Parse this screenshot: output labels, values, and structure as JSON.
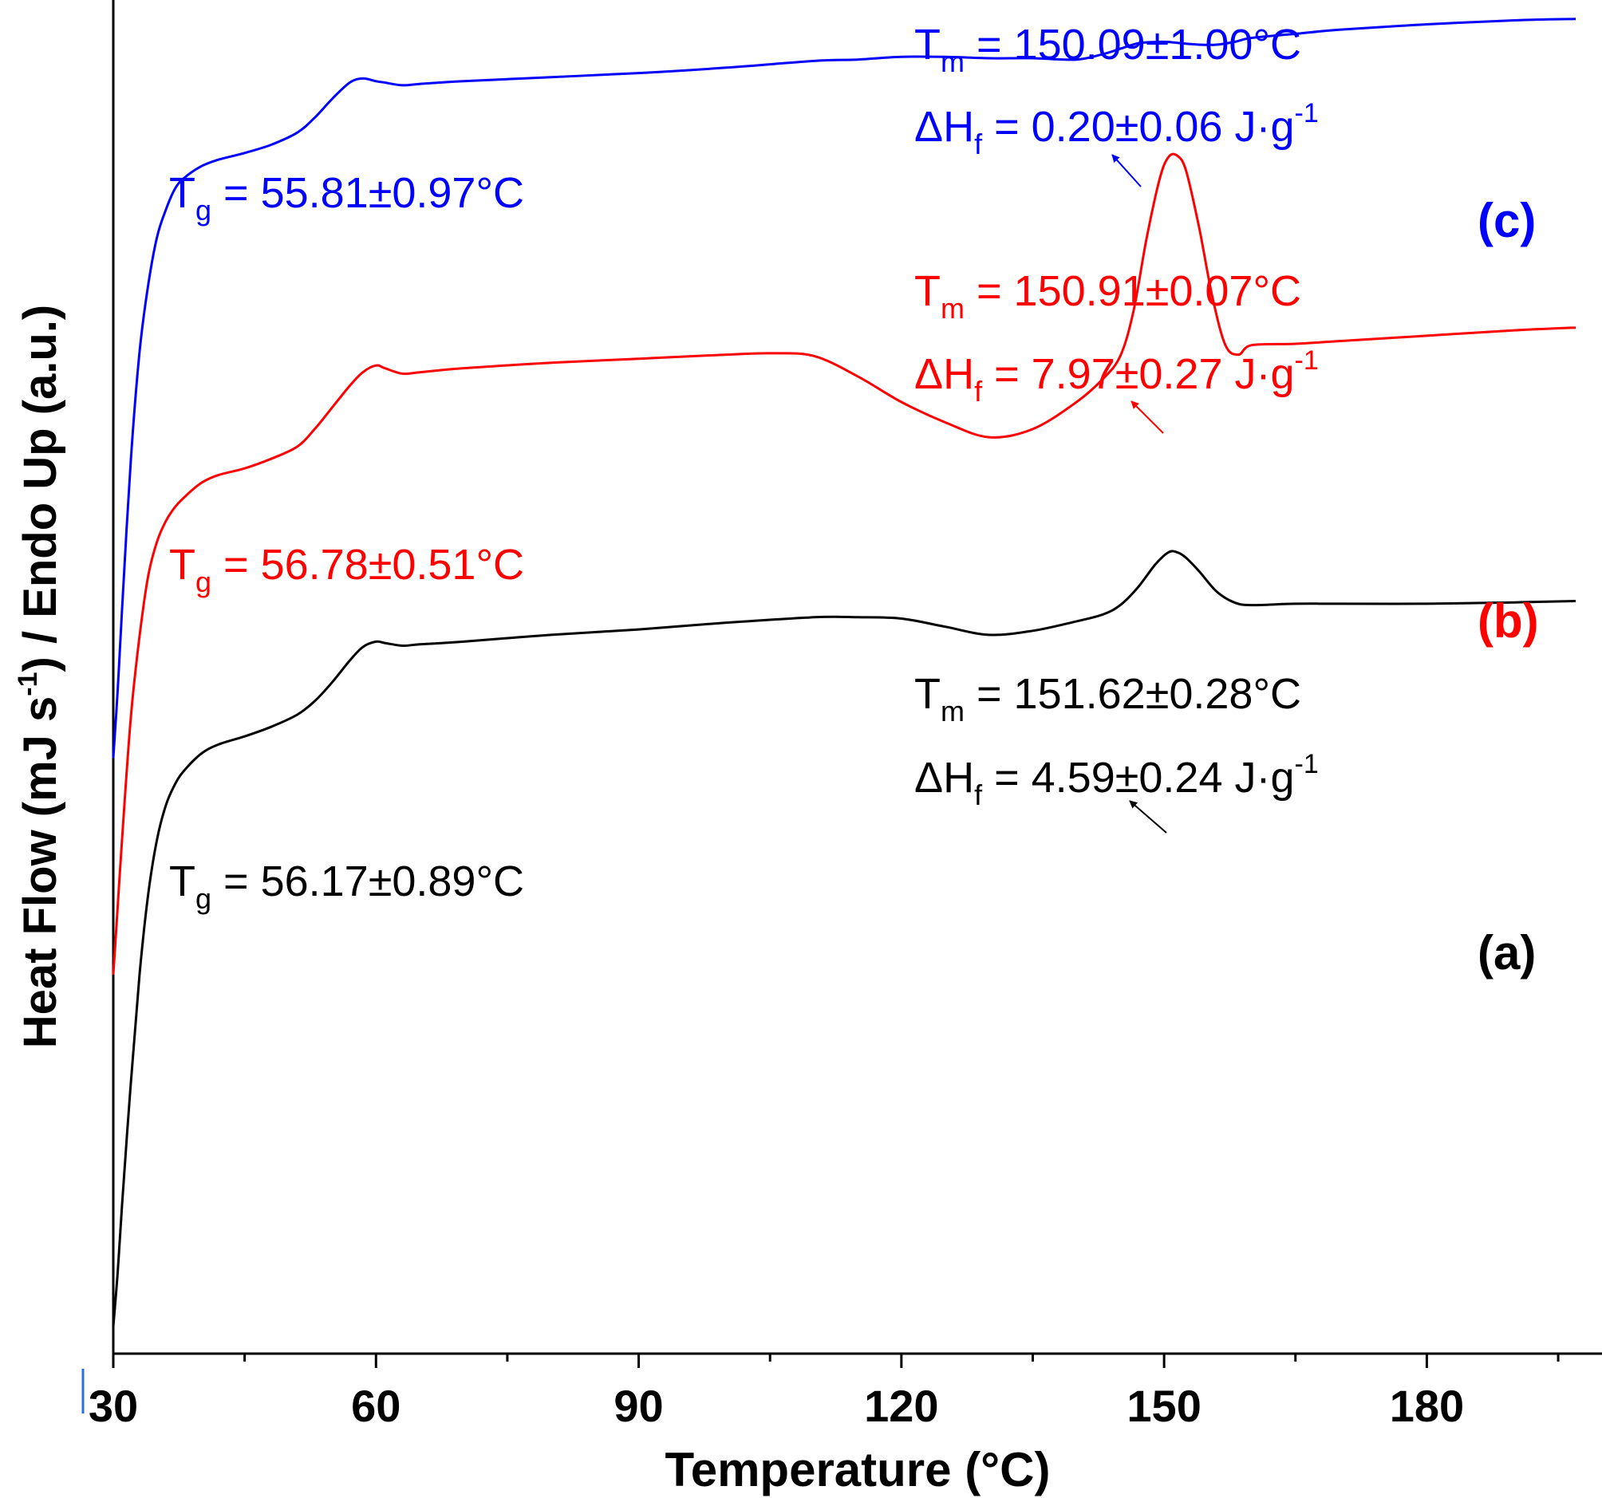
{
  "chart_data": {
    "type": "line",
    "title": "",
    "xlabel": "Temperature (°C)",
    "ylabel": "Heat Flow (mJ s",
    "ylabel_sup": "-1",
    "ylabel_tail": ") / Endo Up (a.u.)",
    "xlim": [
      30,
      197
    ],
    "ylim": [
      0,
      100
    ],
    "xticks": [
      30,
      60,
      90,
      120,
      150,
      180
    ],
    "xtick_labels": [
      "30",
      "60",
      "90",
      "120",
      "150",
      "180"
    ],
    "grid": false,
    "series": [
      {
        "name": "(a)",
        "label": "(a)",
        "color": "#000000",
        "x": [
          30,
          30.5,
          31,
          32,
          33,
          34,
          35,
          36,
          37,
          38,
          40,
          42,
          45,
          48,
          51,
          53,
          55,
          57,
          58.5,
          60,
          61,
          63,
          65,
          70,
          80,
          90,
          100,
          110,
          115,
          120,
          125,
          130,
          135,
          140,
          143,
          145,
          147,
          149,
          150.5,
          151.5,
          152.5,
          154,
          156,
          158,
          160,
          165,
          170,
          180,
          190,
          197
        ],
        "y": [
          2,
          6,
          11,
          20,
          28,
          34,
          38,
          40.5,
          42,
          43,
          44.3,
          45,
          45.6,
          46.3,
          47.2,
          48.2,
          49.6,
          51.2,
          52.2,
          52.6,
          52.5,
          52.3,
          52.4,
          52.6,
          53.1,
          53.5,
          54,
          54.4,
          54.4,
          54.3,
          53.7,
          53.1,
          53.4,
          54.1,
          54.6,
          55.3,
          56.6,
          58.3,
          59.2,
          59.2,
          58.8,
          57.8,
          56.3,
          55.5,
          55.3,
          55.4,
          55.4,
          55.4,
          55.5,
          55.6
        ],
        "annotations": {
          "tg_label": "T",
          "tg_sub": "g",
          "tg_value": " = 56.17±0.89°C",
          "tm_label": "T",
          "tm_sub": "m",
          "tm_value": " = 151.62±0.28°C",
          "dh_label": "ΔH",
          "dh_sub": "f",
          "dh_value": " = 4.59±0.24 J·g",
          "dh_sup": "-1"
        }
      },
      {
        "name": "(b)",
        "label": "(b)",
        "color": "#ff0000",
        "x": [
          30,
          30.5,
          31,
          32,
          33,
          34,
          35,
          36,
          37,
          38,
          40,
          42,
          45,
          48,
          51,
          53,
          55,
          57,
          58.5,
          60,
          61,
          63,
          65,
          70,
          80,
          90,
          100,
          105,
          110,
          115,
          120,
          125,
          130,
          135,
          140,
          143,
          145,
          146.5,
          148,
          149.5,
          150.5,
          151.5,
          152.5,
          154,
          155.5,
          157,
          158.5,
          160,
          165,
          170,
          180,
          190,
          197
        ],
        "y": [
          28,
          33,
          38,
          47,
          53,
          57.5,
          60,
          61.5,
          62.5,
          63.2,
          64.3,
          64.9,
          65.4,
          66.1,
          67,
          68.3,
          69.9,
          71.5,
          72.5,
          73,
          72.8,
          72.4,
          72.5,
          72.8,
          73.2,
          73.5,
          73.8,
          73.9,
          73.7,
          72.2,
          70.3,
          68.8,
          67.7,
          68.3,
          70.3,
          72,
          73.7,
          77,
          82.4,
          86.8,
          88.4,
          88.5,
          87.4,
          83.2,
          78.1,
          74.5,
          73.8,
          74.5,
          74.6,
          74.8,
          75.2,
          75.6,
          75.8
        ],
        "annotations": {
          "tg_label": "T",
          "tg_sub": "g",
          "tg_value": " = 56.78±0.51°C",
          "tm_label": "T",
          "tm_sub": "m",
          "tm_value": " = 150.91±0.07°C",
          "dh_label": "ΔH",
          "dh_sub": "f",
          "dh_value": " = 7.97±0.27 J·g",
          "dh_sup": "-1"
        }
      },
      {
        "name": "(c)",
        "label": "(c)",
        "color": "#0000ff",
        "x": [
          30,
          30.5,
          31,
          32,
          33,
          34,
          35,
          36,
          37,
          38,
          40,
          42,
          45,
          48,
          51,
          53,
          55,
          57,
          58.5,
          60,
          61,
          63,
          65,
          70,
          80,
          90,
          100,
          110,
          115,
          120,
          125,
          130,
          135,
          140,
          143,
          145,
          147,
          149,
          150.5,
          152,
          154,
          156,
          158,
          160,
          165,
          170,
          180,
          190,
          197
        ],
        "y": [
          44,
          49,
          55,
          66,
          74,
          79,
          82.5,
          84.5,
          86,
          86.8,
          87.7,
          88.2,
          88.7,
          89.3,
          90.2,
          91.3,
          92.7,
          93.9,
          94.2,
          94,
          93.9,
          93.7,
          93.8,
          94,
          94.3,
          94.6,
          95,
          95.5,
          95.6,
          95.8,
          95.8,
          95.7,
          95.7,
          95.6,
          96,
          96.4,
          96.8,
          96.9,
          96.9,
          96.8,
          96.7,
          96.7,
          96.9,
          97.2,
          97.5,
          97.8,
          98.2,
          98.5,
          98.6
        ],
        "annotations": {
          "tg_label": "T",
          "tg_sub": "g",
          "tg_value": " = 55.81±0.97°C",
          "tm_label": "T",
          "tm_sub": "m",
          "tm_value": " = 150.09±1.00°C",
          "dh_label": "ΔH",
          "dh_sub": "f",
          "dh_value": " = 0.20±0.06 J·g",
          "dh_sup": "-1"
        }
      }
    ]
  }
}
